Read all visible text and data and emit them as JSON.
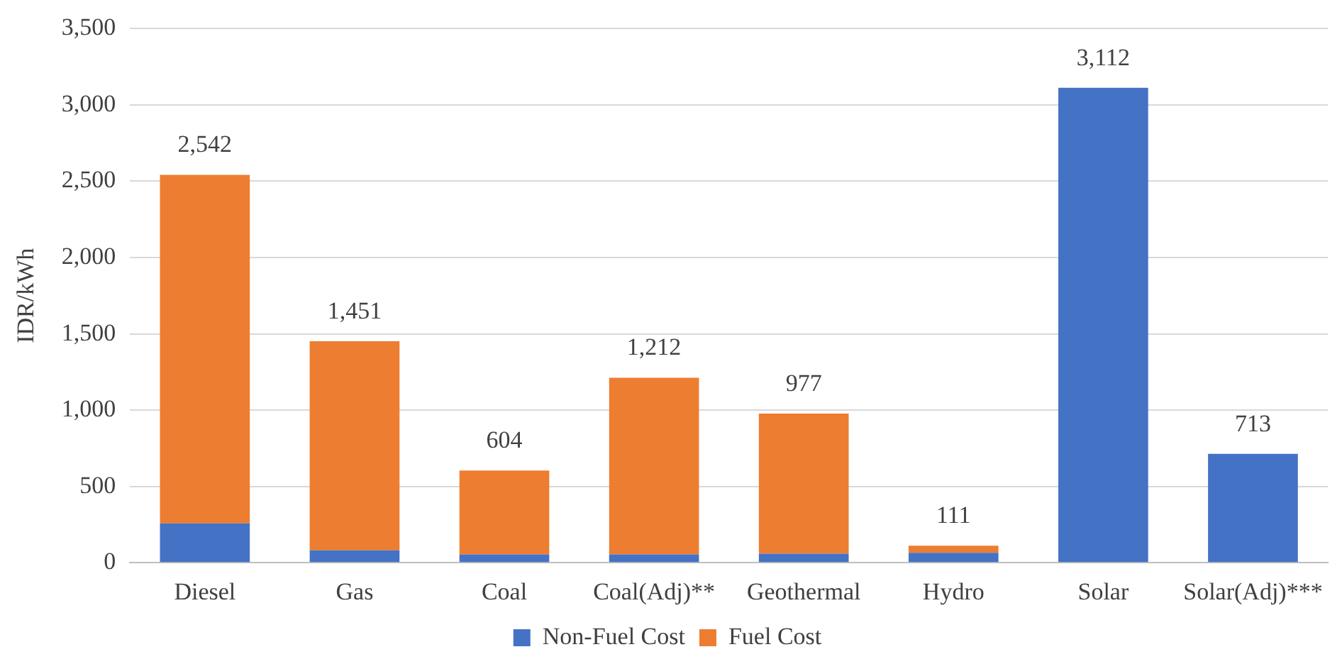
{
  "chart_data": {
    "type": "bar",
    "stacked": true,
    "ylabel": "IDR/kWh",
    "categories": [
      "Diesel",
      "Gas",
      "Coal",
      "Coal(Adj)**",
      "Geothermal",
      "Hydro",
      "Solar",
      "Solar(Adj)***"
    ],
    "series": [
      {
        "name": "Non-Fuel Cost",
        "color": "#4472c4",
        "values": [
          258,
          81,
          54,
          54,
          59,
          65,
          3112,
          713
        ]
      },
      {
        "name": "Fuel Cost",
        "color": "#ed7d31",
        "values": [
          2284,
          1370,
          550,
          1158,
          918,
          46,
          0,
          0
        ]
      }
    ],
    "totals": [
      "2,542",
      "1,451",
      "604",
      "1,212",
      "977",
      "111",
      "3,112",
      "713"
    ],
    "ylim": [
      0,
      3500
    ],
    "yticks": [
      {
        "value": 0,
        "label": "0"
      },
      {
        "value": 500,
        "label": "500"
      },
      {
        "value": 1000,
        "label": "1,000"
      },
      {
        "value": 1500,
        "label": "1,500"
      },
      {
        "value": 2000,
        "label": "2,000"
      },
      {
        "value": 2500,
        "label": "2,500"
      },
      {
        "value": 3000,
        "label": "3,000"
      },
      {
        "value": 3500,
        "label": "3,500"
      }
    ],
    "grid": "y",
    "legend": "bottom"
  }
}
